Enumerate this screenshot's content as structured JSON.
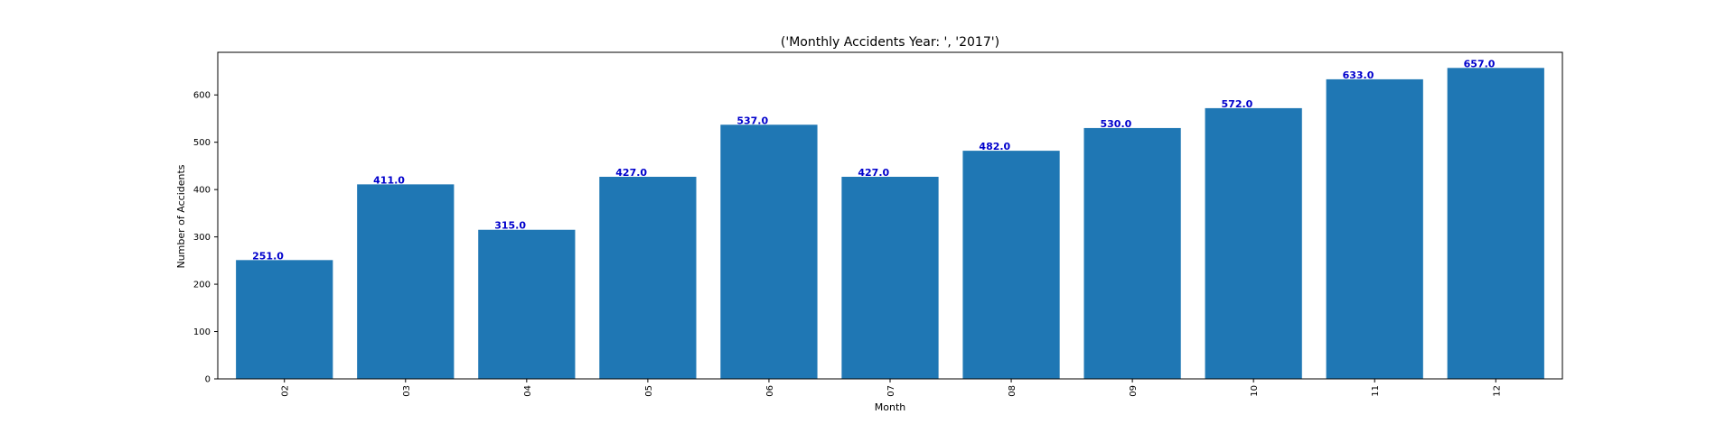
{
  "chart_data": {
    "type": "bar",
    "title": "('Monthly Accidents Year: ', '2017')",
    "xlabel": "Month",
    "ylabel": "Number of Accidents",
    "categories": [
      "02",
      "03",
      "04",
      "05",
      "06",
      "07",
      "08",
      "09",
      "10",
      "11",
      "12"
    ],
    "values": [
      251.0,
      411.0,
      315.0,
      427.0,
      537.0,
      427.0,
      482.0,
      530.0,
      572.0,
      633.0,
      657.0
    ],
    "data_labels": [
      "251.0",
      "411.0",
      "315.0",
      "427.0",
      "537.0",
      "427.0",
      "482.0",
      "530.0",
      "572.0",
      "633.0",
      "657.0"
    ],
    "yticks": [
      0,
      100,
      200,
      300,
      400,
      500,
      600
    ],
    "ylim": [
      0,
      690
    ],
    "grid": false,
    "bar_color": "#1f77b4",
    "label_color": "#0000cc",
    "xtick_rotation": "vertical"
  }
}
